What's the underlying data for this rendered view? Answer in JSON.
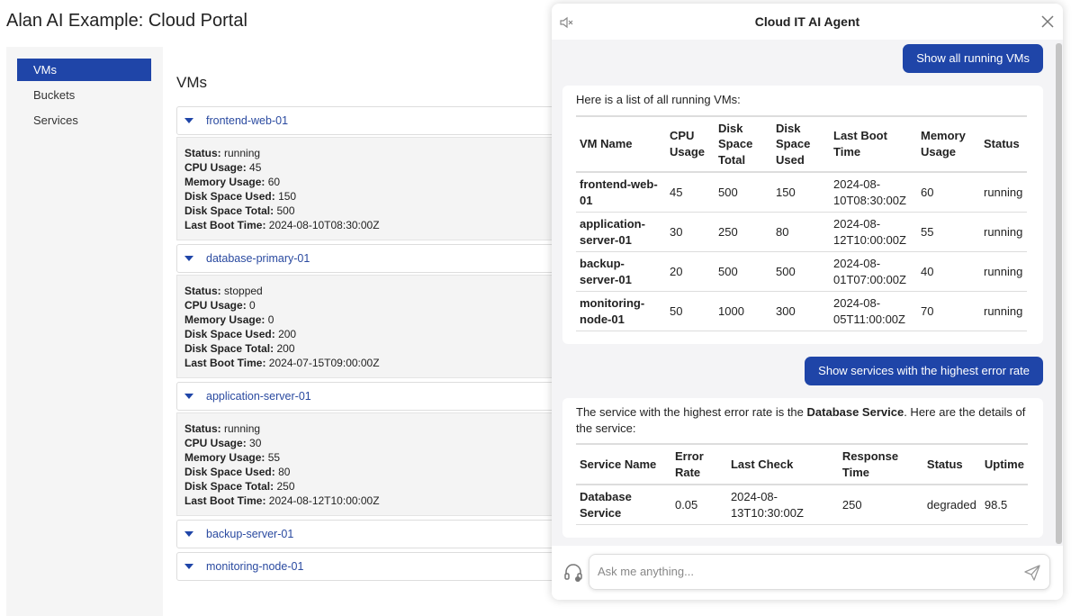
{
  "header": {
    "title": "Alan AI Example: Cloud Portal"
  },
  "sidebar": {
    "items": [
      "VMs",
      "Buckets",
      "Services"
    ],
    "active": 0
  },
  "main": {
    "heading": "VMs",
    "vms": [
      {
        "name": "frontend-web-01",
        "expanded": true,
        "fields": [
          {
            "label": "Status:",
            "value": "running"
          },
          {
            "label": "CPU Usage:",
            "value": "45"
          },
          {
            "label": "Memory Usage:",
            "value": "60"
          },
          {
            "label": "Disk Space Used:",
            "value": "150"
          },
          {
            "label": "Disk Space Total:",
            "value": "500"
          },
          {
            "label": "Last Boot Time:",
            "value": "2024-08-10T08:30:00Z"
          }
        ]
      },
      {
        "name": "database-primary-01",
        "expanded": true,
        "fields": [
          {
            "label": "Status:",
            "value": "stopped"
          },
          {
            "label": "CPU Usage:",
            "value": "0"
          },
          {
            "label": "Memory Usage:",
            "value": "0"
          },
          {
            "label": "Disk Space Used:",
            "value": "200"
          },
          {
            "label": "Disk Space Total:",
            "value": "200"
          },
          {
            "label": "Last Boot Time:",
            "value": "2024-07-15T09:00:00Z"
          }
        ]
      },
      {
        "name": "application-server-01",
        "expanded": true,
        "fields": [
          {
            "label": "Status:",
            "value": "running"
          },
          {
            "label": "CPU Usage:",
            "value": "30"
          },
          {
            "label": "Memory Usage:",
            "value": "55"
          },
          {
            "label": "Disk Space Used:",
            "value": "80"
          },
          {
            "label": "Disk Space Total:",
            "value": "250"
          },
          {
            "label": "Last Boot Time:",
            "value": "2024-08-12T10:00:00Z"
          }
        ]
      },
      {
        "name": "backup-server-01",
        "expanded": false
      },
      {
        "name": "monitoring-node-01",
        "expanded": false
      }
    ]
  },
  "chat": {
    "title": "Cloud IT AI Agent",
    "messages": [
      {
        "role": "user",
        "text": [
          {
            "content": "Show all running VMs"
          }
        ]
      },
      {
        "role": "agent",
        "text": [
          {
            "content": "Here is a list of all running VMs:"
          }
        ],
        "table": {
          "columns": [
            "VM Name",
            "CPU Usage",
            "Disk Space Total",
            "Disk Space Used",
            "Last Boot Time",
            "Memory Usage",
            "Status"
          ],
          "rows": [
            [
              "frontend-web-01",
              "45",
              "500",
              "150",
              "2024-08-10T08:30:00Z",
              "60",
              "running"
            ],
            [
              "application-server-01",
              "30",
              "250",
              "80",
              "2024-08-12T10:00:00Z",
              "55",
              "running"
            ],
            [
              "backup-server-01",
              "20",
              "500",
              "500",
              "2024-08-01T07:00:00Z",
              "40",
              "running"
            ],
            [
              "monitoring-node-01",
              "50",
              "1000",
              "300",
              "2024-08-05T11:00:00Z",
              "70",
              "running"
            ]
          ]
        }
      },
      {
        "role": "user",
        "text": [
          {
            "content": "Show services with the highest error rate"
          }
        ]
      },
      {
        "role": "agent",
        "text": [
          {
            "content": "The service with the highest error rate is the "
          },
          {
            "content": "Database Service",
            "bold": true
          },
          {
            "content": ". Here are the details of the service:"
          }
        ],
        "table": {
          "columns": [
            "Service Name",
            "Error Rate",
            "Last Check",
            "Response Time",
            "Status",
            "Uptime"
          ],
          "rows": [
            [
              "Database Service",
              "0.05",
              "2024-08-13T10:30:00Z",
              "250",
              "degraded",
              "98.5"
            ]
          ]
        }
      }
    ],
    "input_placeholder": "Ask me anything..."
  }
}
